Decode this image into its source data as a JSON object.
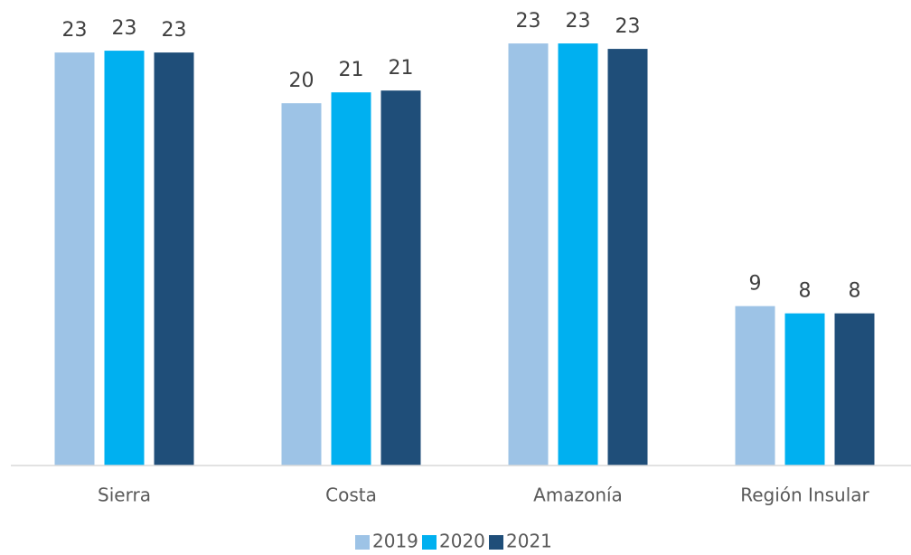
{
  "chart_data": {
    "type": "bar",
    "categories": [
      "Sierra",
      "Costa",
      "Amazonía",
      "Región Insular"
    ],
    "series": [
      {
        "name": "2019",
        "color": "#9dc3e6",
        "values": [
          22.8,
          20.0,
          23.3,
          8.8
        ],
        "value_labels": [
          "23",
          "20",
          "23",
          "9"
        ]
      },
      {
        "name": "2020",
        "color": "#00b0f0",
        "values": [
          22.9,
          20.6,
          23.3,
          8.4
        ],
        "value_labels": [
          "23",
          "21",
          "23",
          "8"
        ]
      },
      {
        "name": "2021",
        "color": "#1f4e79",
        "values": [
          22.8,
          20.7,
          23.0,
          8.4
        ],
        "value_labels": [
          "23",
          "21",
          "23",
          "8"
        ]
      }
    ],
    "ylim": [
      0,
      25
    ],
    "legend": "bottom"
  }
}
